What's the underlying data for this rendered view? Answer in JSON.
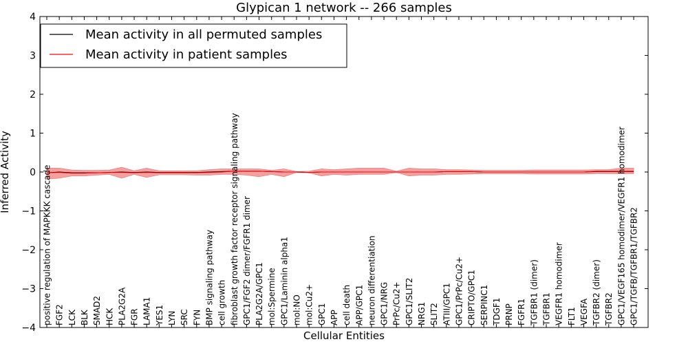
{
  "chart_data": {
    "type": "line",
    "title": "Glypican 1 network -- 266 samples",
    "xlabel": "Cellular Entities",
    "ylabel": "Inferred Activity",
    "ylim": [
      -4,
      4
    ],
    "yticks": [
      -4,
      -3,
      -2,
      -1,
      0,
      1,
      2,
      3,
      4
    ],
    "ytick_labels": [
      "−4",
      "−3",
      "−2",
      "−1",
      "0",
      "1",
      "2",
      "3",
      "4"
    ],
    "grid": false,
    "legend_position": "top-left",
    "colors": {
      "permuted": "#000000",
      "patient": "#ff0000",
      "band": "#f08080"
    },
    "categories": [
      "positive regulation of MAPKKK cascade",
      "FGF2",
      "LCK",
      "BLK",
      "SMAD2",
      "HCK",
      "PLA2G2A",
      "FGR",
      "LAMA1",
      "YES1",
      "LYN",
      "SRC",
      "FYN",
      "BMP signaling pathway",
      "cell growth",
      "fibroblast growth factor receptor signaling pathway",
      "GPC1/FGF2 dimer/FGFR1 dimer",
      "PLA2G2A/GPC1",
      "mol:Spermine",
      "GPC1/Laminin alpha1",
      "mol:NO",
      "mol:Cu2+",
      "GPC1",
      "APP",
      "cell death",
      "APP/GPC1",
      "neuron differentiation",
      "GPC1/NRG",
      "PrPc/Cu2+",
      "GPC1/SLIT2",
      "NRG1",
      "SLIT2",
      "ATIII/GPC1",
      "GPC1/PrPc/Cu2+",
      "CRIPTO/GPC1",
      "SERPINC1",
      "TDGF1",
      "PRNP",
      "FGFR1",
      "TGFBR1 (dimer)",
      "TGFBR1",
      "VEGFR1 homodimer",
      "FLT1",
      "VEGFA",
      "TGFBR2 (dimer)",
      "TGFBR2",
      "GPC1/VEGF165 homodimer/VEGFR1 homodimer",
      "GPC1/TGFB/TGFBR1/TGFBR2"
    ],
    "series": [
      {
        "name": "Mean activity in all permuted samples",
        "values": [
          -0.02,
          0.0,
          -0.02,
          -0.02,
          -0.02,
          -0.01,
          0.0,
          -0.01,
          0.0,
          -0.01,
          -0.01,
          -0.01,
          -0.01,
          0.0,
          0.01,
          0.02,
          0.02,
          0.02,
          0.01,
          0.0,
          0.0,
          -0.01,
          0.0,
          0.0,
          0.0,
          0.0,
          0.0,
          0.0,
          0.0,
          0.0,
          0.0,
          0.0,
          0.01,
          0.01,
          0.01,
          0.0,
          0.0,
          0.0,
          0.0,
          0.0,
          0.0,
          0.0,
          0.0,
          0.0,
          0.01,
          0.01,
          0.01,
          0.01
        ]
      },
      {
        "name": "Mean activity in patient samples",
        "values": [
          -0.02,
          -0.01,
          -0.03,
          -0.03,
          -0.02,
          -0.01,
          -0.01,
          -0.02,
          -0.01,
          -0.02,
          -0.02,
          -0.02,
          -0.02,
          -0.01,
          0.0,
          0.02,
          0.02,
          0.02,
          0.01,
          0.0,
          0.0,
          -0.01,
          0.0,
          0.0,
          0.0,
          0.0,
          0.0,
          0.0,
          0.0,
          0.0,
          0.0,
          0.0,
          0.01,
          0.01,
          0.01,
          0.0,
          0.0,
          0.0,
          0.0,
          0.0,
          0.0,
          0.0,
          0.0,
          0.0,
          0.02,
          0.02,
          0.02,
          0.02
        ]
      }
    ],
    "band": {
      "upper": [
        0.1,
        0.1,
        0.05,
        0.04,
        0.04,
        0.05,
        0.12,
        0.03,
        0.1,
        0.03,
        0.03,
        0.03,
        0.03,
        0.06,
        0.08,
        0.08,
        0.08,
        0.08,
        0.04,
        0.08,
        0.01,
        0.02,
        0.08,
        0.06,
        0.08,
        0.1,
        0.1,
        0.1,
        0.02,
        0.1,
        0.08,
        0.08,
        0.06,
        0.06,
        0.05,
        0.04,
        0.04,
        0.04,
        0.04,
        0.05,
        0.05,
        0.05,
        0.05,
        0.05,
        0.06,
        0.06,
        0.1,
        0.1
      ],
      "lower": [
        -0.18,
        -0.16,
        -0.1,
        -0.1,
        -0.08,
        -0.06,
        -0.16,
        -0.06,
        -0.14,
        -0.07,
        -0.07,
        -0.07,
        -0.08,
        -0.08,
        -0.06,
        -0.06,
        -0.08,
        -0.12,
        -0.06,
        -0.12,
        -0.01,
        -0.02,
        -0.1,
        -0.06,
        -0.08,
        -0.06,
        -0.06,
        -0.06,
        -0.01,
        -0.1,
        -0.08,
        -0.08,
        -0.06,
        -0.06,
        -0.05,
        -0.04,
        -0.04,
        -0.04,
        -0.04,
        -0.05,
        -0.05,
        -0.05,
        -0.05,
        -0.05,
        -0.04,
        -0.04,
        -0.04,
        -0.04
      ]
    }
  }
}
